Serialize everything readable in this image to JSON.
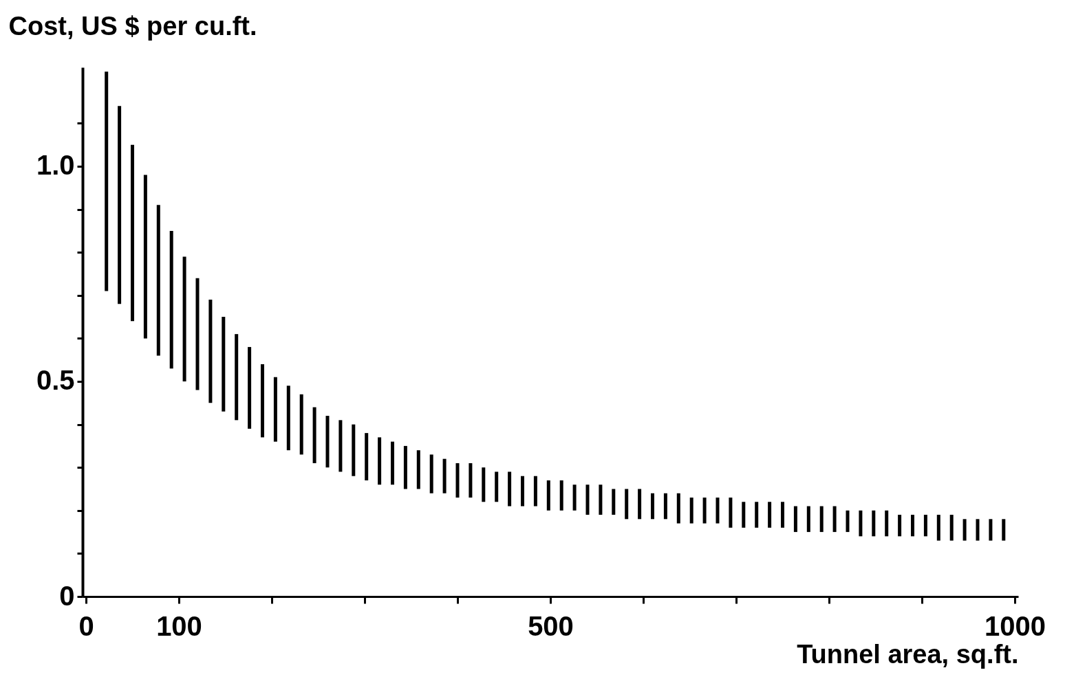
{
  "chart_data": {
    "type": "bar",
    "xlabel": "Tunnel area, sq.ft.",
    "ylabel": "Cost, US $ per cu.ft.",
    "color": "#000000",
    "grid": false,
    "x": [
      22,
      36,
      50,
      64,
      78,
      92,
      106,
      120,
      134,
      148,
      162,
      176,
      190,
      204,
      218,
      232,
      246,
      260,
      274,
      288,
      302,
      316,
      330,
      344,
      358,
      372,
      386,
      400,
      414,
      428,
      442,
      456,
      470,
      484,
      498,
      512,
      526,
      540,
      554,
      568,
      582,
      596,
      610,
      624,
      638,
      652,
      666,
      680,
      694,
      708,
      722,
      736,
      750,
      764,
      778,
      792,
      806,
      820,
      834,
      848,
      862,
      876,
      890,
      904,
      918,
      932,
      946,
      960,
      974,
      988
    ],
    "base": [
      0.71,
      0.68,
      0.64,
      0.6,
      0.56,
      0.53,
      0.5,
      0.48,
      0.45,
      0.43,
      0.41,
      0.39,
      0.37,
      0.36,
      0.34,
      0.33,
      0.31,
      0.3,
      0.29,
      0.28,
      0.27,
      0.26,
      0.26,
      0.25,
      0.25,
      0.24,
      0.24,
      0.23,
      0.23,
      0.22,
      0.22,
      0.21,
      0.21,
      0.21,
      0.2,
      0.2,
      0.2,
      0.19,
      0.19,
      0.19,
      0.18,
      0.18,
      0.18,
      0.18,
      0.17,
      0.17,
      0.17,
      0.17,
      0.16,
      0.16,
      0.16,
      0.16,
      0.16,
      0.15,
      0.15,
      0.15,
      0.15,
      0.15,
      0.14,
      0.14,
      0.14,
      0.14,
      0.14,
      0.14,
      0.13,
      0.13,
      0.13,
      0.13,
      0.13,
      0.13
    ],
    "values": [
      0.51,
      0.46,
      0.41,
      0.38,
      0.35,
      0.32,
      0.29,
      0.26,
      0.24,
      0.22,
      0.2,
      0.19,
      0.17,
      0.15,
      0.15,
      0.14,
      0.13,
      0.12,
      0.12,
      0.12,
      0.11,
      0.11,
      0.1,
      0.1,
      0.09,
      0.09,
      0.08,
      0.08,
      0.08,
      0.08,
      0.07,
      0.08,
      0.07,
      0.07,
      0.07,
      0.07,
      0.06,
      0.07,
      0.07,
      0.06,
      0.07,
      0.07,
      0.06,
      0.06,
      0.07,
      0.06,
      0.06,
      0.06,
      0.07,
      0.06,
      0.06,
      0.06,
      0.06,
      0.06,
      0.06,
      0.06,
      0.06,
      0.05,
      0.06,
      0.06,
      0.06,
      0.05,
      0.05,
      0.05,
      0.06,
      0.06,
      0.05,
      0.05,
      0.05,
      0.05
    ],
    "xlim": [
      0,
      1000
    ],
    "xticks": [
      0,
      100,
      {
        "value": 200,
        "label": null
      },
      {
        "value": 300,
        "label": null
      },
      {
        "value": 400,
        "label": null
      },
      500,
      {
        "value": 600,
        "label": null
      },
      {
        "value": 700,
        "label": null
      },
      {
        "value": 800,
        "label": null
      },
      {
        "value": 900,
        "label": null
      },
      1000
    ],
    "ylim": [
      0,
      1.23
    ],
    "yticks": [
      0,
      {
        "value": 0.1,
        "label": null
      },
      {
        "value": 0.2,
        "label": null
      },
      {
        "value": 0.3,
        "label": null
      },
      {
        "value": 0.4,
        "label": null
      },
      0.5,
      {
        "value": 0.6,
        "label": null
      },
      {
        "value": 0.7,
        "label": null
      },
      {
        "value": 0.8,
        "label": null
      },
      {
        "value": 0.9,
        "label": null
      },
      {
        "value": 1,
        "label": "1.0"
      },
      {
        "value": 1.1,
        "label": null
      }
    ]
  }
}
